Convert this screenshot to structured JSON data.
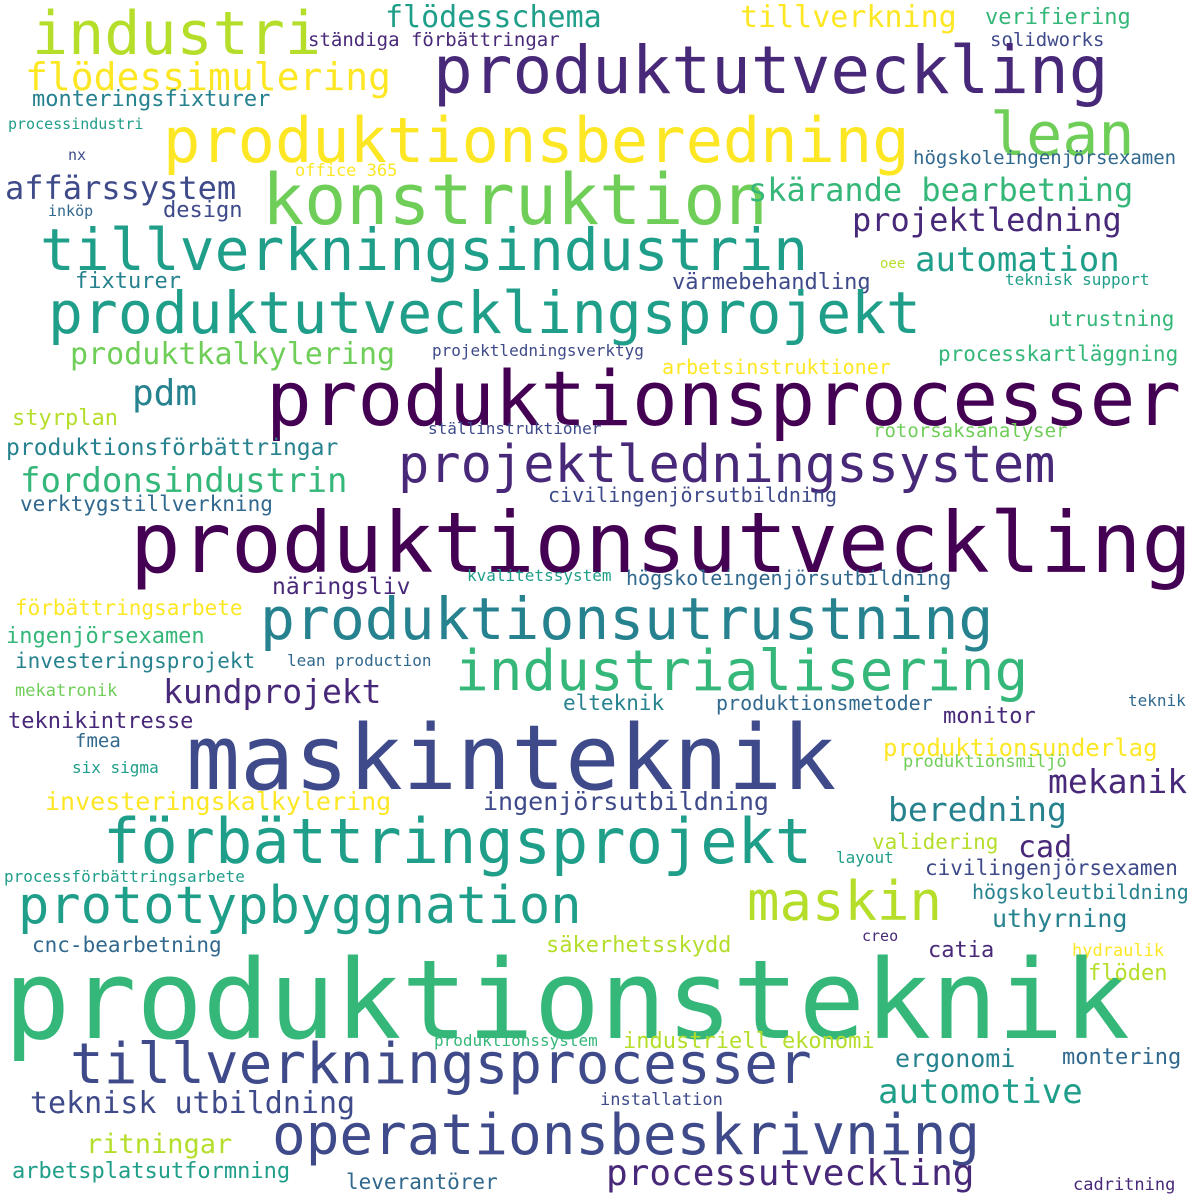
{
  "palette": {
    "c0": "#440154",
    "c1": "#482878",
    "c2": "#3e4a89",
    "c3": "#31688e",
    "c4": "#26828e",
    "c5": "#1f9e89",
    "c6": "#35b779",
    "c7": "#6ece58",
    "c8": "#b5de2b",
    "c9": "#fde725"
  },
  "words": [
    {
      "text": "industri",
      "color": "c8"
    },
    {
      "text": "flödesschema",
      "color": "c5"
    },
    {
      "text": "tillverkning",
      "color": "c9"
    },
    {
      "text": "verifiering",
      "color": "c6"
    },
    {
      "text": "ständiga förbättringar",
      "color": "c1"
    },
    {
      "text": "solidworks",
      "color": "c2"
    },
    {
      "text": "produktutveckling",
      "color": "c1"
    },
    {
      "text": "flödessimulering",
      "color": "c9"
    },
    {
      "text": "monteringsfixturer",
      "color": "c4"
    },
    {
      "text": "processindustri",
      "color": "c5"
    },
    {
      "text": "produktionsberedning",
      "color": "c9"
    },
    {
      "text": "lean",
      "color": "c7"
    },
    {
      "text": "nx",
      "color": "c2"
    },
    {
      "text": "högskoleingenjörsexamen",
      "color": "c3"
    },
    {
      "text": "office 365",
      "color": "c9"
    },
    {
      "text": "affärssystem",
      "color": "c2"
    },
    {
      "text": "konstruktion",
      "color": "c7"
    },
    {
      "text": "skärande bearbetning",
      "color": "c6"
    },
    {
      "text": "inköp",
      "color": "c3"
    },
    {
      "text": "design",
      "color": "c2"
    },
    {
      "text": "projektledning",
      "color": "c1"
    },
    {
      "text": "tillverkningsindustrin",
      "color": "c5"
    },
    {
      "text": "automation",
      "color": "c5"
    },
    {
      "text": "fixturer",
      "color": "c4"
    },
    {
      "text": "värmebehandling",
      "color": "c2"
    },
    {
      "text": "oee",
      "color": "c8"
    },
    {
      "text": "teknisk support",
      "color": "c5"
    },
    {
      "text": "produktutvecklingsprojekt",
      "color": "c5"
    },
    {
      "text": "utrustning",
      "color": "c6"
    },
    {
      "text": "produktkalkylering",
      "color": "c7"
    },
    {
      "text": "projektledningsverktyg",
      "color": "c2"
    },
    {
      "text": "processkartläggning",
      "color": "c6"
    },
    {
      "text": "arbetsinstruktioner",
      "color": "c9"
    },
    {
      "text": "pdm",
      "color": "c4"
    },
    {
      "text": "produktionsprocesser",
      "color": "c0"
    },
    {
      "text": "styrplan",
      "color": "c8"
    },
    {
      "text": "ställinstruktioner",
      "color": "c2"
    },
    {
      "text": "rotorsaksanalyser",
      "color": "c7"
    },
    {
      "text": "produktionsförbättringar",
      "color": "c4"
    },
    {
      "text": "projektledningssystem",
      "color": "c1"
    },
    {
      "text": "fordonsindustrin",
      "color": "c6"
    },
    {
      "text": "verktygstillverkning",
      "color": "c3"
    },
    {
      "text": "civilingenjörsutbildning",
      "color": "c2"
    },
    {
      "text": "produktionsutveckling",
      "color": "c0"
    },
    {
      "text": "kvalitetssystem",
      "color": "c5"
    },
    {
      "text": "näringsliv",
      "color": "c1"
    },
    {
      "text": "högskoleingenjörsutbildning",
      "color": "c3"
    },
    {
      "text": "förbättringsarbete",
      "color": "c9"
    },
    {
      "text": "produktionsutrustning",
      "color": "c4"
    },
    {
      "text": "ingenjörsexamen",
      "color": "c6"
    },
    {
      "text": "industrialisering",
      "color": "c6"
    },
    {
      "text": "investeringsprojekt",
      "color": "c4"
    },
    {
      "text": "lean production",
      "color": "c3"
    },
    {
      "text": "mekatronik",
      "color": "c7"
    },
    {
      "text": "kundprojekt",
      "color": "c1"
    },
    {
      "text": "elteknik",
      "color": "c4"
    },
    {
      "text": "produktionsmetoder",
      "color": "c3"
    },
    {
      "text": "teknik",
      "color": "c3"
    },
    {
      "text": "teknikintresse",
      "color": "c1"
    },
    {
      "text": "monitor",
      "color": "c1"
    },
    {
      "text": "maskinteknik",
      "color": "c2"
    },
    {
      "text": "fmea",
      "color": "c3"
    },
    {
      "text": "produktionsunderlag",
      "color": "c9"
    },
    {
      "text": "six sigma",
      "color": "c5"
    },
    {
      "text": "produktionsmiljö",
      "color": "c7"
    },
    {
      "text": "mekanik",
      "color": "c1"
    },
    {
      "text": "investeringskalkylering",
      "color": "c9"
    },
    {
      "text": "ingenjörsutbildning",
      "color": "c2"
    },
    {
      "text": "beredning",
      "color": "c4"
    },
    {
      "text": "förbättringsprojekt",
      "color": "c5"
    },
    {
      "text": "cad",
      "color": "c1"
    },
    {
      "text": "validering",
      "color": "c8"
    },
    {
      "text": "layout",
      "color": "c5"
    },
    {
      "text": "civilingenjörsexamen",
      "color": "c2"
    },
    {
      "text": "processförbättringsarbete",
      "color": "c5"
    },
    {
      "text": "högskoleutbildning",
      "color": "c4"
    },
    {
      "text": "prototypbyggnation",
      "color": "c5"
    },
    {
      "text": "maskin",
      "color": "c8"
    },
    {
      "text": "uthyrning",
      "color": "c4"
    },
    {
      "text": "cnc-bearbetning",
      "color": "c3"
    },
    {
      "text": "säkerhetsskydd",
      "color": "c8"
    },
    {
      "text": "creo",
      "color": "c1"
    },
    {
      "text": "catia",
      "color": "c1"
    },
    {
      "text": "hydraulik",
      "color": "c9"
    },
    {
      "text": "produktionsteknik",
      "color": "c6"
    },
    {
      "text": "flöden",
      "color": "c8"
    },
    {
      "text": "tillverkningsprocesser",
      "color": "c2"
    },
    {
      "text": "produktionssystem",
      "color": "c6"
    },
    {
      "text": "industriell ekonomi",
      "color": "c8"
    },
    {
      "text": "ergonomi",
      "color": "c4"
    },
    {
      "text": "montering",
      "color": "c3"
    },
    {
      "text": "automotive",
      "color": "c5"
    },
    {
      "text": "teknisk utbildning",
      "color": "c2"
    },
    {
      "text": "installation",
      "color": "c2"
    },
    {
      "text": "operationsbeskrivning",
      "color": "c2"
    },
    {
      "text": "ritningar",
      "color": "c8"
    },
    {
      "text": "arbetsplatsutformning",
      "color": "c5"
    },
    {
      "text": "processutveckling",
      "color": "c1"
    },
    {
      "text": "leverantörer",
      "color": "c3"
    },
    {
      "text": "cadritning",
      "color": "c1"
    }
  ]
}
